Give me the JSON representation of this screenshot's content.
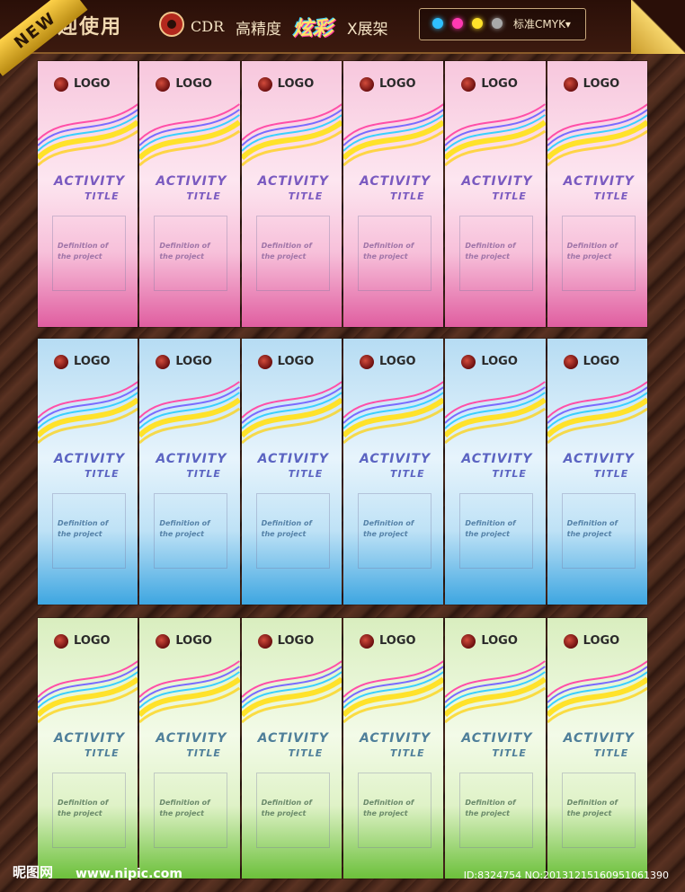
{
  "header": {
    "welcome": "欢迎使用",
    "cdr": "CDR",
    "high_precision": "高精度",
    "dazzling": "炫彩",
    "xframe": "X展架",
    "cmyk_label": "标准CMYK▾",
    "dot_colors": [
      "#2fc0ff",
      "#ff3ab2",
      "#ffe22a",
      "#a9a9a9"
    ]
  },
  "ribbon": {
    "text": "NEW"
  },
  "panels": {
    "logo_text": "LOGO",
    "title_line1": "ACTIVITY",
    "title_line2": "TITLE",
    "description": "Definition of\nthe project",
    "rows": [
      {
        "theme": "pink",
        "accent": "#e05ea0"
      },
      {
        "theme": "blue",
        "accent": "#3ea6e1"
      },
      {
        "theme": "green",
        "accent": "#6cc03b"
      }
    ]
  },
  "footer": {
    "site_logo": "昵图网",
    "url": "www.nipic.com",
    "id_text": "ID:8324754 NO:20131215160951061390"
  }
}
